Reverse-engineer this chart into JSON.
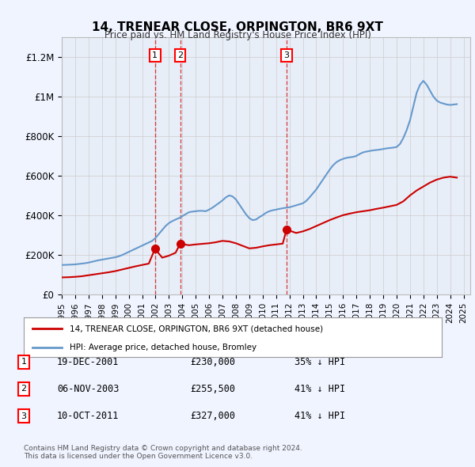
{
  "title": "14, TRENEAR CLOSE, ORPINGTON, BR6 9XT",
  "subtitle": "Price paid vs. HM Land Registry's House Price Index (HPI)",
  "ylabel_ticks": [
    "£0",
    "£200K",
    "£400K",
    "£600K",
    "£800K",
    "£1M",
    "£1.2M"
  ],
  "ytick_values": [
    0,
    200000,
    400000,
    600000,
    800000,
    1000000,
    1200000
  ],
  "ylim": [
    0,
    1300000
  ],
  "xlim_start": 1995.0,
  "xlim_end": 2025.5,
  "sale_dates": [
    "2001-12-19",
    "2003-11-06",
    "2011-10-10"
  ],
  "sale_years": [
    2001.96,
    2003.84,
    2011.78
  ],
  "sale_prices": [
    230000,
    255500,
    327000
  ],
  "sale_labels": [
    "1",
    "2",
    "3"
  ],
  "sale_info": [
    {
      "num": "1",
      "date": "19-DEC-2001",
      "price": "£230,000",
      "pct": "35% ↓ HPI"
    },
    {
      "num": "2",
      "date": "06-NOV-2003",
      "price": "£255,500",
      "pct": "41% ↓ HPI"
    },
    {
      "num": "3",
      "date": "10-OCT-2011",
      "price": "£327,000",
      "pct": "41% ↓ HPI"
    }
  ],
  "legend_label_red": "14, TRENEAR CLOSE, ORPINGTON, BR6 9XT (detached house)",
  "legend_label_blue": "HPI: Average price, detached house, Bromley",
  "footer": "Contains HM Land Registry data © Crown copyright and database right 2024.\nThis data is licensed under the Open Government Licence v3.0.",
  "hpi_years": [
    1995.0,
    1995.25,
    1995.5,
    1995.75,
    1996.0,
    1996.25,
    1996.5,
    1996.75,
    1997.0,
    1997.25,
    1997.5,
    1997.75,
    1998.0,
    1998.25,
    1998.5,
    1998.75,
    1999.0,
    1999.25,
    1999.5,
    1999.75,
    2000.0,
    2000.25,
    2000.5,
    2000.75,
    2001.0,
    2001.25,
    2001.5,
    2001.75,
    2002.0,
    2002.25,
    2002.5,
    2002.75,
    2003.0,
    2003.25,
    2003.5,
    2003.75,
    2004.0,
    2004.25,
    2004.5,
    2004.75,
    2005.0,
    2005.25,
    2005.5,
    2005.75,
    2006.0,
    2006.25,
    2006.5,
    2006.75,
    2007.0,
    2007.25,
    2007.5,
    2007.75,
    2008.0,
    2008.25,
    2008.5,
    2008.75,
    2009.0,
    2009.25,
    2009.5,
    2009.75,
    2010.0,
    2010.25,
    2010.5,
    2010.75,
    2011.0,
    2011.25,
    2011.5,
    2011.75,
    2012.0,
    2012.25,
    2012.5,
    2012.75,
    2013.0,
    2013.25,
    2013.5,
    2013.75,
    2014.0,
    2014.25,
    2014.5,
    2014.75,
    2015.0,
    2015.25,
    2015.5,
    2015.75,
    2016.0,
    2016.25,
    2016.5,
    2016.75,
    2017.0,
    2017.25,
    2017.5,
    2017.75,
    2018.0,
    2018.25,
    2018.5,
    2018.75,
    2019.0,
    2019.25,
    2019.5,
    2019.75,
    2020.0,
    2020.25,
    2020.5,
    2020.75,
    2021.0,
    2021.25,
    2021.5,
    2021.75,
    2022.0,
    2022.25,
    2022.5,
    2022.75,
    2023.0,
    2023.25,
    2023.5,
    2023.75,
    2024.0,
    2024.25,
    2024.5
  ],
  "hpi_values": [
    148000,
    148500,
    149000,
    150000,
    151000,
    153000,
    155000,
    157000,
    160000,
    164000,
    168000,
    172000,
    175000,
    178000,
    181000,
    184000,
    187000,
    192000,
    198000,
    206000,
    214000,
    222000,
    230000,
    238000,
    246000,
    254000,
    262000,
    270000,
    285000,
    305000,
    325000,
    345000,
    360000,
    370000,
    378000,
    385000,
    395000,
    405000,
    415000,
    418000,
    420000,
    422000,
    422000,
    420000,
    428000,
    438000,
    450000,
    462000,
    475000,
    490000,
    500000,
    495000,
    480000,
    455000,
    430000,
    405000,
    385000,
    375000,
    378000,
    390000,
    400000,
    412000,
    420000,
    425000,
    428000,
    432000,
    435000,
    438000,
    440000,
    445000,
    450000,
    455000,
    460000,
    472000,
    490000,
    510000,
    530000,
    555000,
    580000,
    605000,
    630000,
    652000,
    668000,
    678000,
    685000,
    690000,
    693000,
    695000,
    700000,
    710000,
    718000,
    722000,
    725000,
    728000,
    730000,
    732000,
    735000,
    738000,
    740000,
    742000,
    745000,
    760000,
    790000,
    830000,
    880000,
    950000,
    1020000,
    1060000,
    1080000,
    1060000,
    1030000,
    1000000,
    980000,
    970000,
    965000,
    960000,
    958000,
    960000,
    962000
  ],
  "red_years": [
    1995.0,
    1995.5,
    1996.0,
    1996.5,
    1997.0,
    1997.5,
    1998.0,
    1998.5,
    1999.0,
    1999.5,
    2000.0,
    2000.5,
    2001.0,
    2001.5,
    2001.96,
    2002.5,
    2003.0,
    2003.5,
    2003.84,
    2004.5,
    2005.0,
    2005.5,
    2006.0,
    2006.5,
    2007.0,
    2007.5,
    2008.0,
    2008.5,
    2009.0,
    2009.5,
    2010.0,
    2010.5,
    2011.0,
    2011.5,
    2011.78,
    2012.5,
    2013.0,
    2013.5,
    2014.0,
    2014.5,
    2015.0,
    2015.5,
    2016.0,
    2016.5,
    2017.0,
    2017.5,
    2018.0,
    2018.5,
    2019.0,
    2019.5,
    2020.0,
    2020.5,
    2021.0,
    2021.5,
    2022.0,
    2022.5,
    2023.0,
    2023.5,
    2024.0,
    2024.5
  ],
  "red_values": [
    85000,
    86000,
    88000,
    91000,
    96000,
    101000,
    106000,
    111000,
    117000,
    125000,
    133000,
    141000,
    148000,
    155000,
    230000,
    185000,
    195000,
    210000,
    255500,
    248000,
    252000,
    255000,
    258000,
    263000,
    270000,
    267000,
    258000,
    245000,
    232000,
    235000,
    242000,
    248000,
    252000,
    256000,
    327000,
    310000,
    318000,
    330000,
    345000,
    360000,
    375000,
    388000,
    400000,
    408000,
    415000,
    420000,
    425000,
    432000,
    438000,
    445000,
    452000,
    470000,
    500000,
    525000,
    545000,
    565000,
    580000,
    590000,
    595000,
    590000
  ],
  "bg_color": "#f0f4ff",
  "plot_bg_color": "#ffffff",
  "red_color": "#cc0000",
  "blue_color": "#6699cc",
  "vline_color": "#cc0000",
  "marker_color": "#cc0000",
  "grid_color": "#cccccc",
  "xtick_years": [
    1995,
    1996,
    1997,
    1998,
    1999,
    2000,
    2001,
    2002,
    2003,
    2004,
    2005,
    2006,
    2007,
    2008,
    2009,
    2010,
    2011,
    2012,
    2013,
    2014,
    2015,
    2016,
    2017,
    2018,
    2019,
    2020,
    2021,
    2022,
    2023,
    2024,
    2025
  ]
}
